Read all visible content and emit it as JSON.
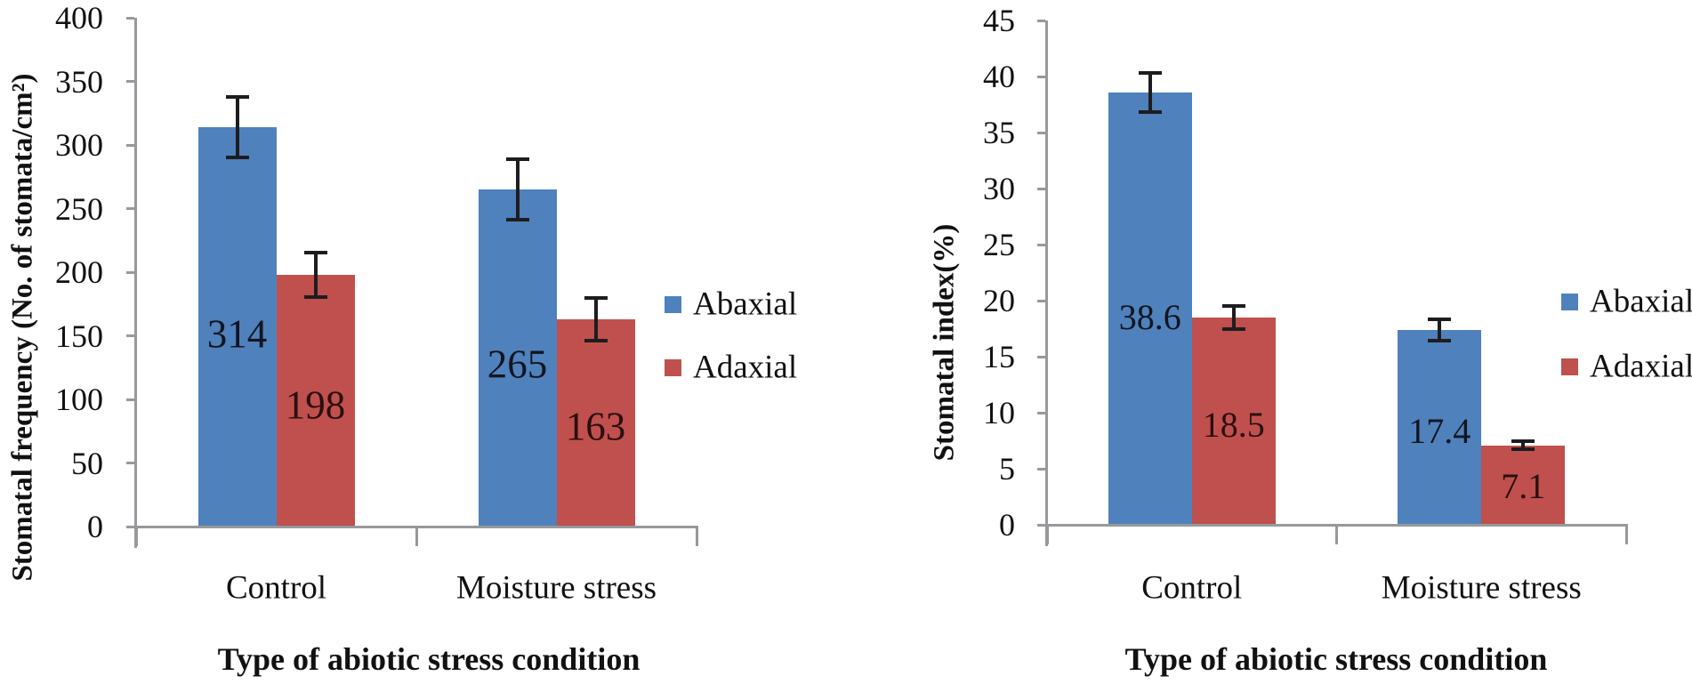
{
  "figure": {
    "background": "#FFFFFF",
    "text_color": "#111111",
    "axis_color": "#97999C",
    "error_bar_color": "#1D1D1F"
  },
  "chart_data": [
    {
      "type": "bar",
      "title": "",
      "ylabel": "Stomatal frequency (No. of stomata/cm²)",
      "xlabel": "Type of abiotic stress condition",
      "categories": [
        "Control",
        "Moisture stress"
      ],
      "series": [
        {
          "name": "Abaxial",
          "color": "#4F81BD",
          "label_color": "#13151F",
          "values": [
            314,
            265
          ],
          "labels": [
            "314",
            "265"
          ],
          "errors": [
            25,
            25
          ]
        },
        {
          "name": "Adaxial",
          "color": "#C0504D",
          "label_color": "#2A0F10",
          "values": [
            198,
            163
          ],
          "labels": [
            "198",
            "163"
          ],
          "errors": [
            19,
            18
          ]
        }
      ],
      "ylim": [
        0,
        400
      ],
      "y_step": 50,
      "y_ticks": [
        "0",
        "50",
        "100",
        "150",
        "200",
        "250",
        "300",
        "350",
        "400"
      ],
      "grid": false,
      "error_bars": true,
      "legend_position": "right",
      "legend": [
        "Abaxial",
        "Adaxial"
      ]
    },
    {
      "type": "bar",
      "title": "",
      "ylabel": "Stomatal index(%)",
      "xlabel": "Type of abiotic stress condition",
      "categories": [
        "Control",
        "Moisture stress"
      ],
      "series": [
        {
          "name": "Abaxial",
          "color": "#4F81BD",
          "label_color": "#13151F",
          "values": [
            38.6,
            17.4
          ],
          "labels": [
            "38.6",
            "17.4"
          ],
          "errors": [
            1.9,
            1.1
          ]
        },
        {
          "name": "Adaxial",
          "color": "#C0504D",
          "label_color": "#2A0F10",
          "values": [
            18.5,
            7.1
          ],
          "labels": [
            "18.5",
            "7.1"
          ],
          "errors": [
            1.2,
            0.5
          ]
        }
      ],
      "ylim": [
        0,
        45
      ],
      "y_step": 5,
      "y_ticks": [
        "0",
        "5",
        "10",
        "15",
        "20",
        "25",
        "30",
        "35",
        "40",
        "45"
      ],
      "grid": false,
      "error_bars": true,
      "legend_position": "right",
      "legend": [
        "Abaxial",
        "Adaxial"
      ]
    }
  ]
}
